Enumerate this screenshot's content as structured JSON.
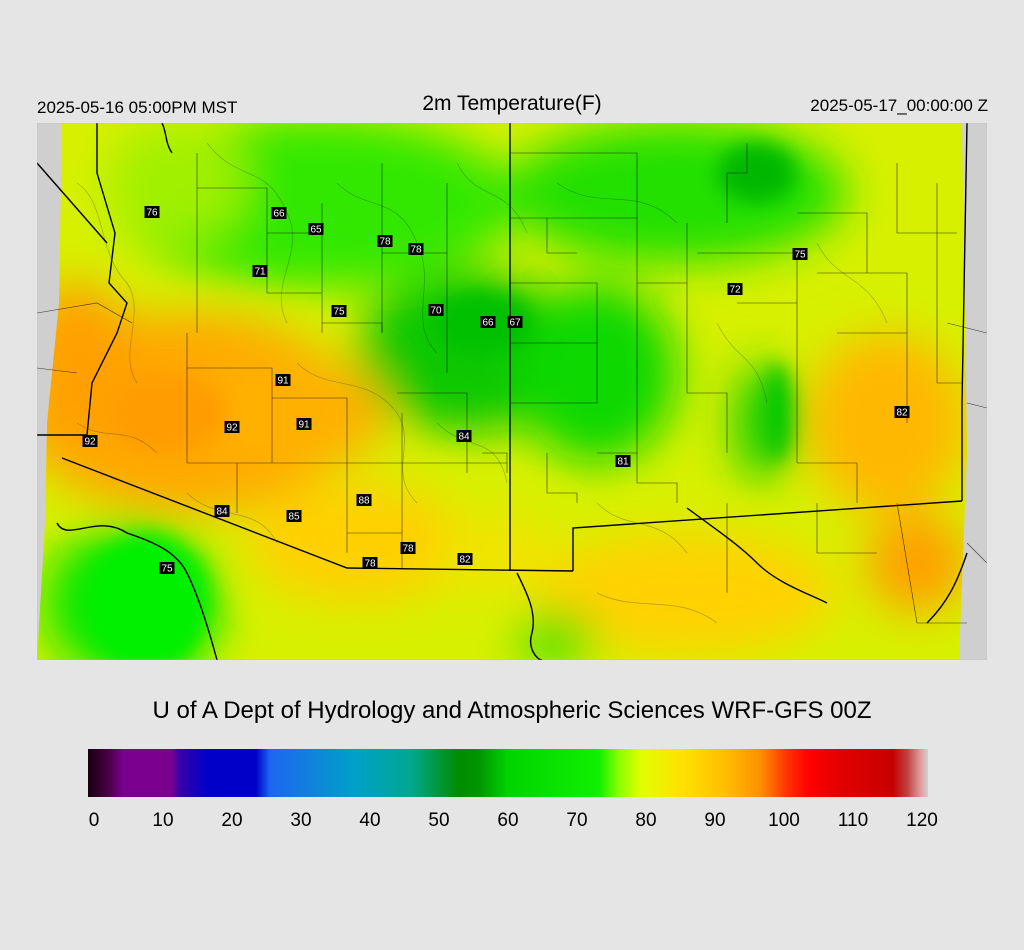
{
  "header": {
    "valid_local": "2025-05-16 05:00PM MST",
    "title": "2m Temperature(F)",
    "valid_utc": "2025-05-17_00:00:00 Z"
  },
  "credit": "U of A Dept of Hydrology and Atmospheric Sciences WRF-GFS 00Z",
  "colorbar": {
    "min": 0,
    "max": 120,
    "ticks": [
      "0",
      "10",
      "20",
      "30",
      "40",
      "50",
      "60",
      "70",
      "80",
      "90",
      "100",
      "110",
      "120"
    ],
    "stops": [
      {
        "v": 0,
        "c": "#1a0010"
      },
      {
        "v": 3,
        "c": "#4a0048"
      },
      {
        "v": 5,
        "c": "#7a0090"
      },
      {
        "v": 12,
        "c": "#7a0090"
      },
      {
        "v": 13,
        "c": "#3a00a8"
      },
      {
        "v": 17,
        "c": "#0000c8"
      },
      {
        "v": 24,
        "c": "#0000c8"
      },
      {
        "v": 26,
        "c": "#1e66f0"
      },
      {
        "v": 38,
        "c": "#00a0c8"
      },
      {
        "v": 46,
        "c": "#00a890"
      },
      {
        "v": 53,
        "c": "#008c00"
      },
      {
        "v": 56,
        "c": "#009800"
      },
      {
        "v": 60,
        "c": "#00d400"
      },
      {
        "v": 73,
        "c": "#10f000"
      },
      {
        "v": 76,
        "c": "#90ff00"
      },
      {
        "v": 79,
        "c": "#e0ff00"
      },
      {
        "v": 85,
        "c": "#ffe000"
      },
      {
        "v": 91,
        "c": "#ffbe00"
      },
      {
        "v": 96,
        "c": "#ff9000"
      },
      {
        "v": 100,
        "c": "#ff3000"
      },
      {
        "v": 103,
        "c": "#ff0000"
      },
      {
        "v": 108,
        "c": "#e00000"
      },
      {
        "v": 115,
        "c": "#c80000"
      },
      {
        "v": 117,
        "c": "#c04040"
      },
      {
        "v": 119,
        "c": "#e0a0a0"
      },
      {
        "v": 120,
        "c": "#d0d0d0"
      }
    ]
  },
  "station_values": [
    "76",
    "66",
    "65",
    "78",
    "78",
    "71",
    "75",
    "70",
    "66",
    "67",
    "72",
    "75",
    "91",
    "92",
    "91",
    "84",
    "92",
    "81",
    "82",
    "84",
    "85",
    "88",
    "78",
    "78",
    "82",
    "75"
  ],
  "colors": {
    "background": "#e5e5e5",
    "no_data": "#cfcfcf",
    "boundary": "#000000",
    "label_box": "#000000",
    "label_text": "#ffffff"
  }
}
